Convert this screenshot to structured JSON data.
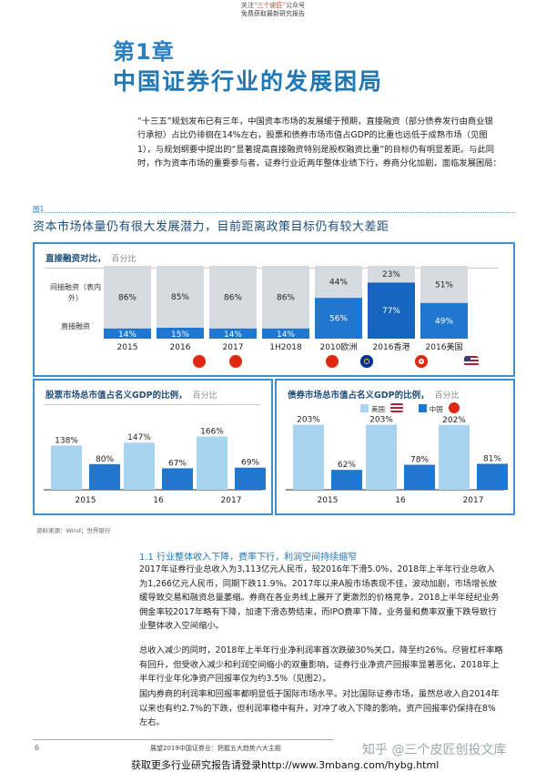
{
  "header": {
    "line1_prefix": "关注",
    "line1_brand": "“三个皮匠”",
    "line1_suffix": "公众号",
    "line2": "免费获取最新研究报告"
  },
  "chapter": {
    "number": "第1章",
    "title": "中国证券行业的发展困局"
  },
  "intro": "“十三五”规划发布已有三年，中国资本市场的发展缓于预期，直接融资（部分债券发行由商业银行承担）占比仍徘徊在14%左右，股票和债券市场市值占GDP的比重也远低于成熟市场（见图1），与规划纲要中提出的“显著提高直接融资特别是股权融资比重”的目标仍有明显差距。与此同时，作为资本市场的重要参与者，证券行业近两年整体业绩下行，券商分化加剧，面临发展困局：",
  "figure": {
    "label": "图1",
    "title": "资本市场体量仍有很大发展潜力，目前距离政策目标仍有较大差距"
  },
  "panel_top": {
    "title": "直接融资对比，",
    "unit": "百分比",
    "row_label_indirect": "间接融资（表内外）",
    "row_label_direct": "直接融资",
    "colors": {
      "indirect": "#d6dbe2",
      "direct": "#1f77d0",
      "direct_dark": "#1565c0"
    }
  },
  "panel_left": {
    "title": "股票市场总市值占名义GDP的比例，",
    "unit": "百分比",
    "colors": {
      "us": "#a8d4f0",
      "cn": "#1f77d0"
    }
  },
  "panel_right": {
    "title": "债券市场总市值占名义GDP的比例，",
    "unit": "百分比",
    "legend_us": "美国",
    "legend_cn": "中国"
  },
  "chart_data": [
    {
      "type": "bar",
      "title": "直接融资对比，百分比",
      "categories": [
        "2015",
        "2016",
        "2017",
        "1H2018",
        "2010欧洲",
        "2016香港",
        "2016美国"
      ],
      "series": [
        {
          "name": "直接融资",
          "values": [
            14,
            15,
            14,
            14,
            56,
            77,
            49
          ]
        },
        {
          "name": "间接融资（表内外）",
          "values": [
            86,
            85,
            86,
            86,
            44,
            23,
            51
          ]
        }
      ],
      "label_indirect": [
        "86%",
        "85%",
        "86%",
        "86%",
        "44%",
        "23%",
        "51%"
      ],
      "label_direct": [
        "14%",
        "15%",
        "14%",
        "14%",
        "56%",
        "77%",
        "49%"
      ],
      "ylim": [
        0,
        100
      ]
    },
    {
      "type": "bar",
      "title": "股票市场总市值占名义GDP的比例，百分比",
      "categories": [
        "2015",
        "16",
        "2017"
      ],
      "series": [
        {
          "name": "美国",
          "values": [
            138,
            147,
            166
          ]
        },
        {
          "name": "中国",
          "values": [
            80,
            67,
            69
          ]
        }
      ],
      "ylim": [
        0,
        210
      ]
    },
    {
      "type": "bar",
      "title": "债券市场总市值占名义GDP的比例，百分比",
      "categories": [
        "2015",
        "16",
        "2017"
      ],
      "series": [
        {
          "name": "美国",
          "values": [
            203,
            203,
            202
          ]
        },
        {
          "name": "中国",
          "values": [
            62,
            78,
            81
          ]
        }
      ],
      "ylim": [
        0,
        210
      ]
    }
  ],
  "source": "资料来源：Wind；世界银行",
  "section": {
    "heading": "1.1 行业整体收入下降，费率下行，利润空间持续缩窄",
    "p1": "2017年证券行业总收入为3,113亿元人民币，较2016年下滑5.0%，2018年上半年行业总收入为1,266亿元人民币，同期下跌11.9%。2017年以来A股市场表现不佳，波动加剧，市场增长放缓导致交易和融资总量萎缩。券商在各业务线上展开了更激烈的价格竞争，2018上半年经纪业务佣金率较2017年略有下降，加速下滑态势结束，而IPO费率下降，业务量和费率双重下跌导致行业整体收入空间缩小。",
    "p2": "总收入减少的同时，2018年上半年行业净利润率首次跌破30%关口，降至约26%。尽管杠杆率略有回升，但受收入减少和利润空间缩小的双重影响，证券行业净资产回报率显著恶化，2018年上半年行业年化净资产回报率仅为约3.5%（见图2）。",
    "p3": "国内券商的利润率和回报率都明显低于国际市场水平。对比国际证券市场，虽然总收入自2014年以来也有约2.7%的下跌，但利润率稳中有升，对冲了收入下降的影响，资产回报率仍保持在8%左右。"
  },
  "footer": {
    "page": "6",
    "text": "展望2019中国证券业：把握五大趋势六大主题",
    "promo": "获取更多行业研究报告请登录http://www.3mbang.com/hybg.html",
    "watermark": "知乎 @三个皮匠创投文库"
  }
}
